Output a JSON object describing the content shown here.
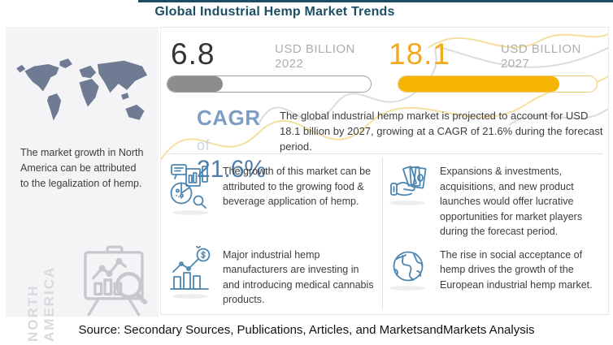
{
  "page": {
    "title": "Global Industrial Hemp Market Trends",
    "source_line": "Source: Secondary Sources, Publications, Articles, and MarketsandMarkets Analysis"
  },
  "region_panel": {
    "region_label": "NORTH\nAMERICA",
    "note": "The market growth in North America can be attributed to the legalization of hemp."
  },
  "stats": {
    "current": {
      "value": "6.8",
      "unit": "USD BILLION",
      "year": "2022"
    },
    "forecast": {
      "value": "18.1",
      "unit": "USD BILLION",
      "year": "2027"
    },
    "cagr": {
      "label": "CAGR",
      "of_word": "of",
      "value": "21.6%"
    },
    "summary": "The global industrial hemp market is projected to account for USD 18.1 billion by 2027, growing at a CAGR of 21.6% during the forecast period."
  },
  "highlights": [
    {
      "icon": "market-analytics-icon",
      "text": "The growth of this market can be attributed to the growing food & beverage application of hemp."
    },
    {
      "icon": "investment-cash-icon",
      "text": "Expansions & investments, acquisitions, and new product launches would offer lucrative opportunities for market players during the forecast period."
    },
    {
      "icon": "growth-chart-icon",
      "text": "Major industrial hemp manufacturers are investing in and introducing medical cannabis products."
    },
    {
      "icon": "globe-icon",
      "text": "The rise in social acceptance of hemp drives the growth of the European industrial hemp market."
    }
  ],
  "chart_data": {
    "type": "bar",
    "title": "Global Industrial Hemp Market Trends",
    "categories": [
      "2022",
      "2027"
    ],
    "values": [
      6.8,
      18.1
    ],
    "unit": "USD BILLION",
    "cagr_percent": 21.6,
    "fills": {
      "current_pct": 27,
      "forecast_pct": 81
    },
    "legend_position": "none",
    "colors": {
      "current_bar": "#8d8d8d",
      "forecast_bar": "#f6b504",
      "accent_amber": "#f1a91e",
      "cagr_blue": "#4f7ca8",
      "title_teal": "#1d4e63"
    }
  }
}
